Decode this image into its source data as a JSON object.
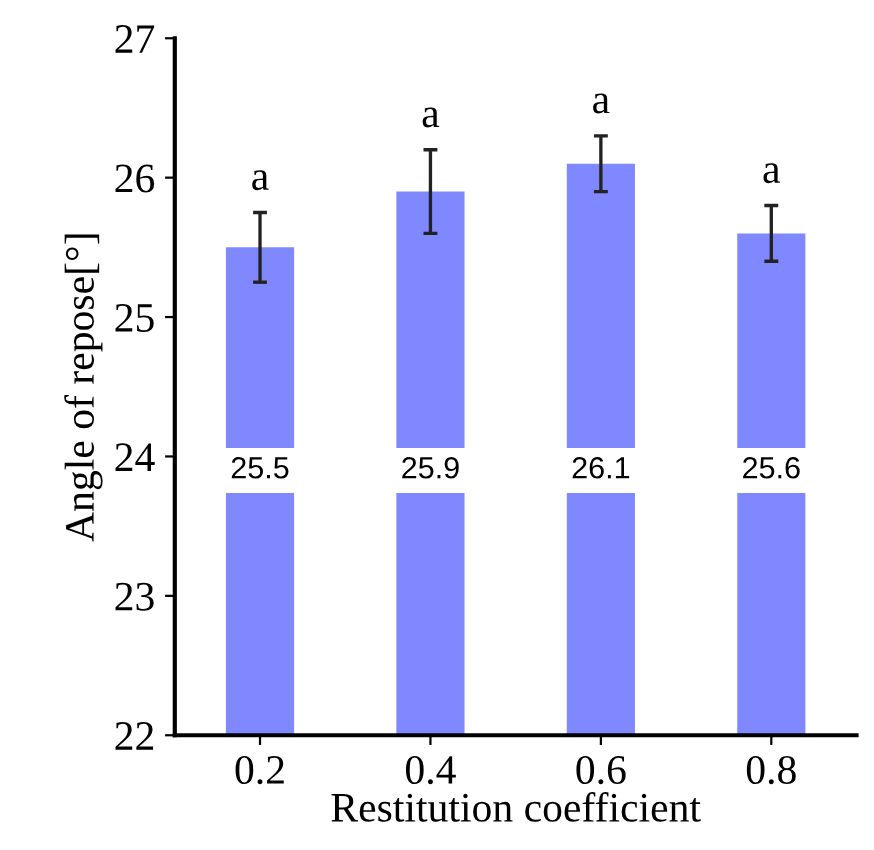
{
  "chart_data": {
    "type": "bar",
    "xlabel": "Restitution coefficient",
    "ylabel": "Angle of repose[°]",
    "categories": [
      "0.2",
      "0.4",
      "0.6",
      "0.8"
    ],
    "values": [
      25.5,
      25.9,
      26.1,
      25.6
    ],
    "errors": [
      0.25,
      0.3,
      0.2,
      0.2
    ],
    "color": "#8088ff",
    "ylim": [
      22,
      27
    ],
    "yticks": [
      22,
      23,
      24,
      25,
      26,
      27
    ],
    "data_labels": true,
    "grid": false,
    "legend": false,
    "annotations": [
      "a",
      "a",
      "a",
      "a"
    ]
  }
}
